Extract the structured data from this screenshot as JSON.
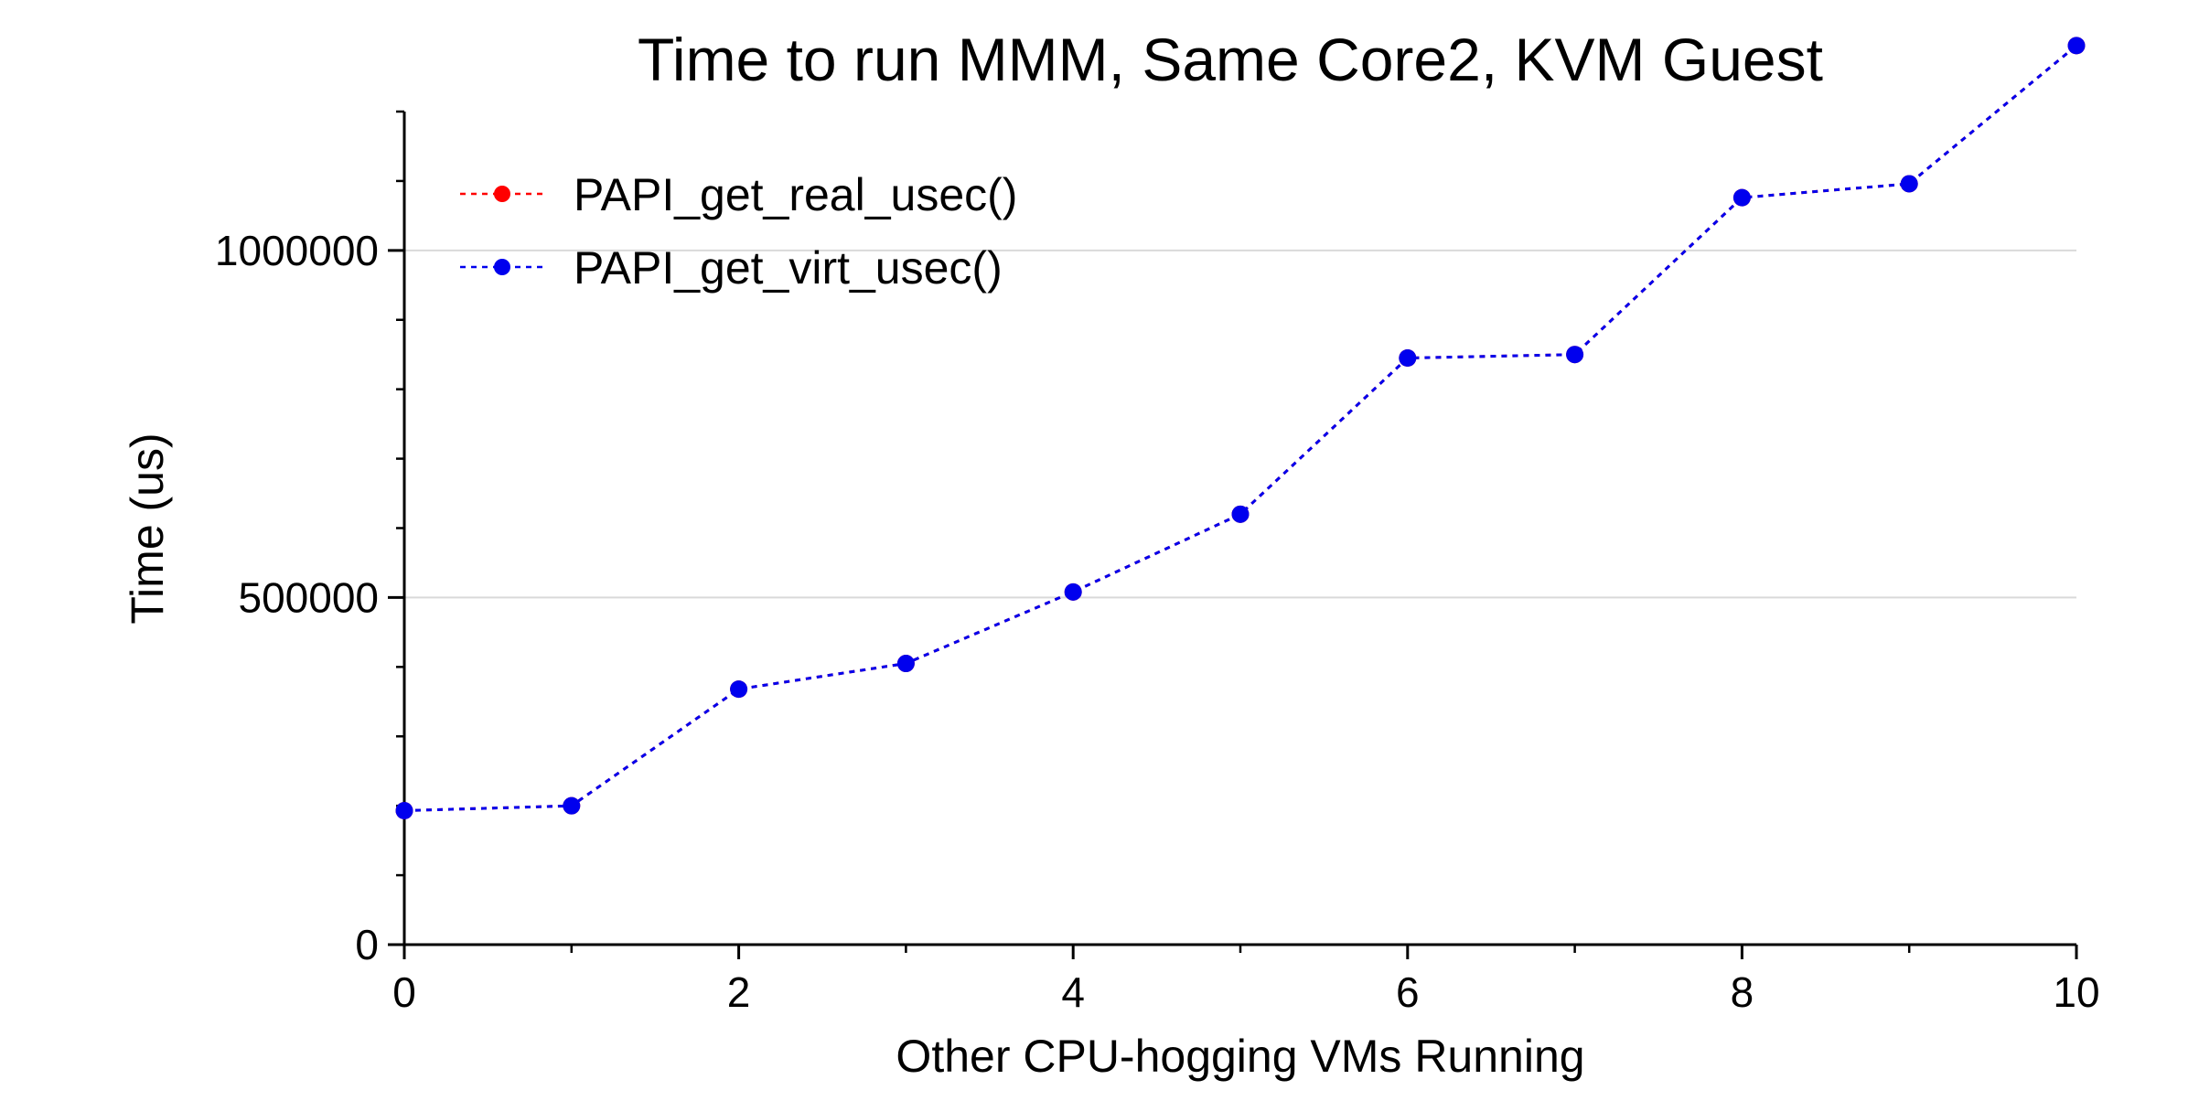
{
  "chart_data": {
    "type": "line",
    "title": "Time to run MMM, Same Core2, KVM Guest",
    "xlabel": "Other CPU-hogging VMs Running",
    "ylabel": "Time (us)",
    "xlim": [
      0,
      10
    ],
    "ylim": [
      0,
      1200000
    ],
    "x_ticks": [
      0,
      2,
      4,
      6,
      8,
      10
    ],
    "x_tick_labels": [
      "0",
      "2",
      "4",
      "6",
      "8",
      "10"
    ],
    "x_minor_ticks": [
      1,
      3,
      5,
      7,
      9
    ],
    "y_ticks": [
      0,
      500000,
      1000000
    ],
    "y_tick_labels": [
      "0",
      "500000",
      "1000000"
    ],
    "grid": true,
    "legend_position": "top-left",
    "x": [
      0,
      1,
      2,
      3,
      4,
      5,
      6,
      7,
      8,
      9,
      10
    ],
    "series": [
      {
        "name": "PAPI_get_real_usec()",
        "color": "#ff0000",
        "values": [
          193000,
          200000,
          368000,
          405000,
          508000,
          620000,
          845000,
          850000,
          1076000,
          1096000,
          1295000
        ]
      },
      {
        "name": "PAPI_get_virt_usec()",
        "color": "#0000ee",
        "values": [
          193000,
          200000,
          368000,
          405000,
          508000,
          620000,
          845000,
          850000,
          1076000,
          1096000,
          1295000
        ]
      }
    ]
  }
}
